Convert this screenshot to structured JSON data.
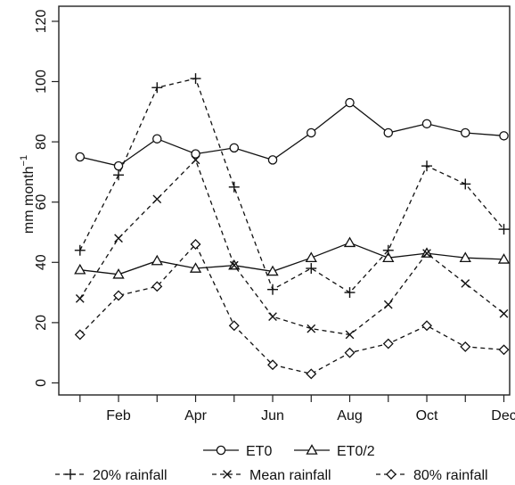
{
  "chart_data": {
    "type": "line",
    "xlabel": "",
    "ylabel": "mm month",
    "ylabel_superscript": "−1",
    "x": [
      1,
      2,
      3,
      4,
      5,
      6,
      7,
      8,
      9,
      10,
      11,
      12
    ],
    "x_tick_positions": [
      2,
      4,
      6,
      8,
      10,
      12
    ],
    "x_tick_labels": [
      "Feb",
      "Apr",
      "Jun",
      "Aug",
      "Oct",
      "Dec"
    ],
    "xlim": [
      0.45,
      12.15
    ],
    "ylim": [
      -4,
      125
    ],
    "y_ticks": [
      0,
      20,
      40,
      60,
      80,
      100,
      120
    ],
    "grid": false,
    "legend_position": "bottom",
    "series": [
      {
        "name": "ET0",
        "line": "solid",
        "marker": "circle",
        "values": [
          75,
          72,
          81,
          76,
          78,
          74,
          83,
          93,
          83,
          86,
          83,
          82
        ]
      },
      {
        "name": "ET0/2",
        "line": "solid",
        "marker": "triangle",
        "values": [
          37.5,
          36,
          40.5,
          38,
          39,
          37,
          41.5,
          46.5,
          41.5,
          43,
          41.5,
          41
        ]
      },
      {
        "name": "20% rainfall",
        "line": "dashed",
        "marker": "plus",
        "values": [
          44,
          69,
          98,
          101,
          65,
          31,
          38,
          30,
          44,
          72,
          66,
          51
        ]
      },
      {
        "name": "Mean rainfall",
        "line": "dashed",
        "marker": "cross",
        "values": [
          28,
          48,
          61,
          74,
          39,
          22,
          18,
          16,
          26,
          43,
          33,
          23
        ]
      },
      {
        "name": "80% rainfall",
        "line": "dashed",
        "marker": "diamond",
        "values": [
          16,
          29,
          32,
          46,
          19,
          6,
          3,
          10,
          13,
          19,
          12,
          11
        ]
      }
    ]
  }
}
